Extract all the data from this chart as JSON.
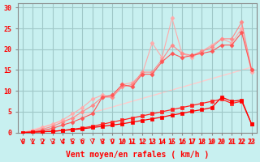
{
  "background_color": "#c8f0f0",
  "grid_color": "#a0c8c8",
  "x_values": [
    0,
    1,
    2,
    3,
    4,
    5,
    6,
    7,
    8,
    9,
    10,
    11,
    12,
    13,
    14,
    15,
    16,
    17,
    18,
    19,
    20,
    21,
    22,
    23
  ],
  "xlabel": "Vent moyen/en rafales ( km/h )",
  "ylabel_ticks": [
    0,
    5,
    10,
    15,
    20,
    25,
    30
  ],
  "ylim": [
    0,
    31
  ],
  "xlim": [
    0,
    23
  ],
  "line1_color": "#ff0000",
  "line1_y": [
    0,
    0.1,
    0.2,
    0.3,
    0.5,
    0.7,
    0.9,
    1.2,
    1.5,
    1.8,
    2.1,
    2.5,
    2.9,
    3.3,
    3.7,
    4.2,
    4.6,
    5.1,
    5.5,
    6.0,
    8.5,
    7.5,
    7.8,
    2.0
  ],
  "line2_color": "#ff2222",
  "line2_y": [
    0,
    0.1,
    0.2,
    0.3,
    0.5,
    0.8,
    1.1,
    1.5,
    2.0,
    2.5,
    3.0,
    3.5,
    4.0,
    4.5,
    5.0,
    5.5,
    6.0,
    6.5,
    7.0,
    7.5,
    8.0,
    7.0,
    7.5,
    2.0
  ],
  "line3_color": "#ff5555",
  "line3_y": [
    0,
    0.2,
    0.5,
    1.0,
    1.8,
    2.5,
    3.5,
    4.5,
    8.5,
    9.0,
    11.5,
    11.0,
    14.0,
    14.0,
    17.0,
    19.0,
    18.0,
    18.5,
    19.0,
    19.5,
    21.0,
    21.0,
    24.0,
    15.0
  ],
  "line4_color": "#ff8888",
  "line4_y": [
    0,
    0.3,
    0.8,
    1.5,
    2.5,
    3.5,
    5.0,
    6.5,
    8.5,
    8.5,
    11.0,
    11.5,
    14.5,
    14.5,
    17.5,
    21.0,
    19.0,
    18.5,
    19.5,
    20.5,
    22.5,
    22.5,
    26.5,
    15.0
  ],
  "line5_color": "#ffaaaa",
  "line5_y": [
    0,
    0.5,
    1.2,
    2.0,
    3.0,
    4.5,
    6.0,
    8.0,
    9.0,
    8.5,
    11.5,
    12.0,
    14.0,
    21.5,
    18.0,
    27.5,
    19.0,
    18.0,
    19.5,
    21.0,
    22.5,
    21.5,
    25.0,
    14.5
  ],
  "diag_color": "#ffcccc",
  "diag_y": [
    0,
    0.68,
    1.36,
    2.04,
    2.73,
    3.41,
    4.09,
    4.77,
    5.45,
    6.13,
    6.81,
    7.5,
    8.18,
    8.86,
    9.54,
    10.22,
    10.9,
    11.58,
    12.27,
    12.95,
    13.63,
    14.31,
    14.99,
    15.68
  ],
  "wind_arrows": [
    0,
    1,
    2,
    3,
    4,
    5,
    6,
    7,
    8,
    9,
    10,
    11,
    12,
    13,
    14,
    15,
    16,
    17,
    18,
    19,
    20,
    21,
    22,
    23
  ],
  "xlabel_fontsize": 7,
  "tick_fontsize": 6,
  "title_fontsize": 7
}
